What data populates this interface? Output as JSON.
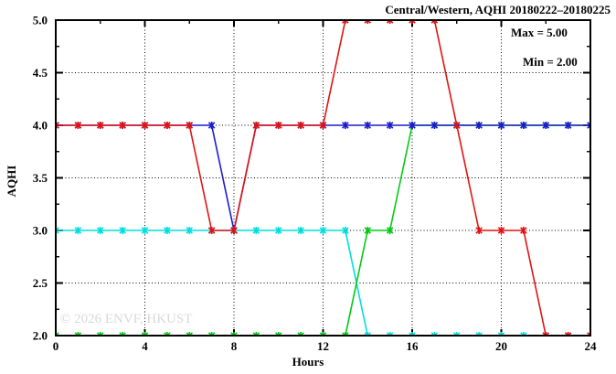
{
  "title": "Central/Western, AQHI 20180222–20180225",
  "annotation": {
    "max_label": "Max = 5.00",
    "min_label": "Min = 2.00"
  },
  "watermark": "© 2026 ENVF, HKUST",
  "axes": {
    "x_label": "Hours",
    "y_label": "AQHI"
  },
  "chart_data": {
    "type": "line",
    "title": "Central/Western, AQHI 20180222–20180225",
    "xlabel": "Hours",
    "ylabel": "AQHI",
    "xlim": [
      0,
      24
    ],
    "ylim": [
      2.0,
      5.0
    ],
    "grid": {
      "x": [
        4,
        8,
        12,
        16,
        20
      ],
      "y": [
        2.5,
        3.0,
        3.5,
        4.0,
        4.5
      ]
    },
    "legend_position": "none",
    "annotations": [
      "Max = 5.00",
      "Min = 2.00"
    ],
    "x": [
      0,
      1,
      2,
      3,
      4,
      5,
      6,
      7,
      8,
      9,
      10,
      11,
      12,
      13,
      14,
      15,
      16,
      17,
      18,
      19,
      20,
      21,
      22,
      23,
      24
    ],
    "series": [
      {
        "name": "cyan-line",
        "color": "#00dede",
        "marker": "star",
        "values": [
          3,
          3,
          3,
          3,
          3,
          3,
          3,
          3,
          3,
          3,
          3,
          3,
          3,
          3,
          2,
          2,
          2,
          2,
          2,
          2,
          2,
          2,
          2,
          2,
          2
        ]
      },
      {
        "name": "green-line",
        "color": "#00cc11",
        "marker": "star",
        "values": [
          2,
          2,
          2,
          2,
          2,
          2,
          2,
          2,
          2,
          2,
          2,
          2,
          2,
          2,
          3,
          3,
          4,
          4,
          4,
          4,
          4,
          4,
          4,
          4,
          4
        ]
      },
      {
        "name": "blue-line",
        "color": "#1c1ccc",
        "marker": "star",
        "values": [
          4,
          4,
          4,
          4,
          4,
          4,
          4,
          4,
          3,
          4,
          4,
          4,
          4,
          4,
          4,
          4,
          4,
          4,
          4,
          4,
          4,
          4,
          4,
          4,
          4
        ]
      },
      {
        "name": "red-line",
        "color": "#e11212",
        "marker": "star",
        "values": [
          4,
          4,
          4,
          4,
          4,
          4,
          4,
          3,
          3,
          4,
          4,
          4,
          4,
          5,
          5,
          5,
          5,
          5,
          4,
          3,
          3,
          3,
          2,
          2,
          2
        ]
      }
    ],
    "xticks": {
      "labels": [
        "0",
        "4",
        "8",
        "12",
        "16",
        "20",
        "24"
      ],
      "values": [
        0,
        4,
        8,
        12,
        16,
        20,
        24
      ]
    },
    "yticks": {
      "labels": [
        "2.0",
        "2.5",
        "3.0",
        "3.5",
        "4.0",
        "4.5",
        "5.0"
      ],
      "values": [
        2.0,
        2.5,
        3.0,
        3.5,
        4.0,
        4.5,
        5.0
      ]
    },
    "minor_xtick_step": 2,
    "minor_ytick_step": 0.25
  }
}
